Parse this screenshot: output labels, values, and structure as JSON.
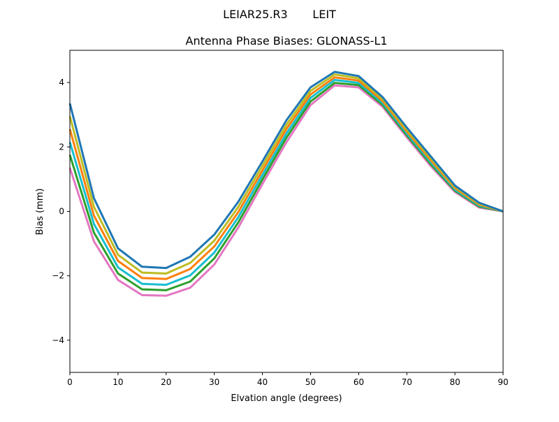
{
  "chart_data": {
    "type": "line",
    "suptitle": "LEIAR25.R3       LEIT",
    "title": "Antenna Phase Biases: GLONASS-L1",
    "xlabel": "Elvation angle (degrees)",
    "ylabel": "Bias (mm)",
    "xlim": [
      0,
      90
    ],
    "ylim": [
      -5,
      5
    ],
    "xticks": [
      0,
      10,
      20,
      30,
      40,
      50,
      60,
      70,
      80,
      90
    ],
    "yticks": [
      -4,
      -2,
      0,
      2,
      4
    ],
    "ytick_labels": [
      "−4",
      "−2",
      "0",
      "2",
      "4"
    ],
    "grid": false,
    "legend": "none",
    "x": [
      0,
      5,
      10,
      15,
      20,
      25,
      30,
      35,
      40,
      45,
      50,
      55,
      60,
      65,
      70,
      75,
      80,
      85,
      90
    ],
    "series": [
      {
        "color": "#e377c2",
        "values": [
          1.35,
          -0.93,
          -2.13,
          -2.6,
          -2.62,
          -2.37,
          -1.65,
          -0.5,
          0.85,
          2.15,
          3.3,
          3.91,
          3.85,
          3.24,
          2.3,
          1.4,
          0.6,
          0.12,
          0
        ]
      },
      {
        "color": "#2ca02c",
        "values": [
          1.75,
          -0.66,
          -1.93,
          -2.42,
          -2.45,
          -2.18,
          -1.46,
          -0.34,
          0.99,
          2.29,
          3.41,
          3.99,
          3.92,
          3.3,
          2.36,
          1.46,
          0.64,
          0.15,
          0
        ]
      },
      {
        "color": "#17becf",
        "values": [
          2.15,
          -0.39,
          -1.74,
          -2.25,
          -2.28,
          -1.99,
          -1.28,
          -0.18,
          1.13,
          2.42,
          3.52,
          4.08,
          3.99,
          3.36,
          2.42,
          1.52,
          0.68,
          0.18,
          0
        ]
      },
      {
        "color": "#ff7f0e",
        "values": [
          2.55,
          -0.13,
          -1.54,
          -2.07,
          -2.1,
          -1.79,
          -1.09,
          -0.02,
          1.27,
          2.56,
          3.63,
          4.16,
          4.06,
          3.42,
          2.48,
          1.58,
          0.72,
          0.21,
          0
        ]
      },
      {
        "color": "#bcbd22",
        "values": [
          2.95,
          0.14,
          -1.35,
          -1.9,
          -1.93,
          -1.6,
          -0.91,
          0.14,
          1.41,
          2.69,
          3.74,
          4.25,
          4.13,
          3.48,
          2.54,
          1.64,
          0.76,
          0.24,
          0
        ]
      },
      {
        "color": "#1f77b4",
        "values": [
          3.35,
          0.41,
          -1.15,
          -1.72,
          -1.76,
          -1.41,
          -0.72,
          0.3,
          1.55,
          2.83,
          3.85,
          4.33,
          4.2,
          3.54,
          2.6,
          1.7,
          0.8,
          0.27,
          0
        ]
      }
    ]
  }
}
